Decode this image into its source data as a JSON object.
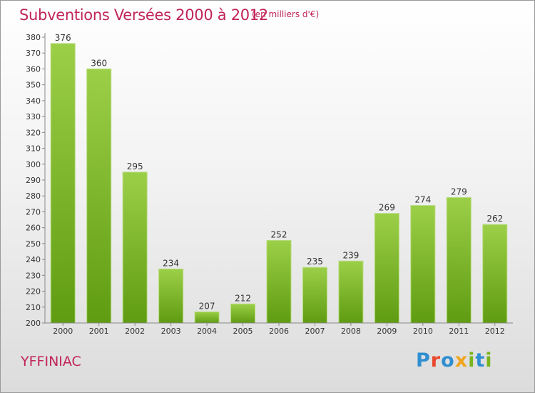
{
  "header": {
    "title": "Subventions Versées 2000 à 2012",
    "subtitle": "(en milliers d'€)"
  },
  "footer": {
    "place": "YFFINIAC",
    "logo_text": "Proxiti",
    "logo_colors": [
      "#2f8fd1",
      "#e8492c",
      "#2f8fd1",
      "#f0a51c",
      "#7ab51d",
      "#2f8fd1",
      "#7ab51d"
    ]
  },
  "colors": {
    "bar_light": "#9ccf48",
    "bar_dark": "#5f9c12",
    "title": "#c0245a"
  },
  "chart_data": {
    "type": "bar",
    "categories": [
      "2000",
      "2001",
      "2002",
      "2003",
      "2004",
      "2005",
      "2006",
      "2007",
      "2008",
      "2009",
      "2010",
      "2011",
      "2012"
    ],
    "values": [
      376,
      360,
      295,
      234,
      207,
      212,
      252,
      235,
      239,
      269,
      274,
      279,
      262
    ],
    "ylim": [
      200,
      380
    ],
    "yticks": [
      200,
      210,
      220,
      230,
      240,
      250,
      260,
      270,
      280,
      290,
      300,
      310,
      320,
      330,
      340,
      350,
      360,
      370,
      380
    ],
    "grid": false
  }
}
